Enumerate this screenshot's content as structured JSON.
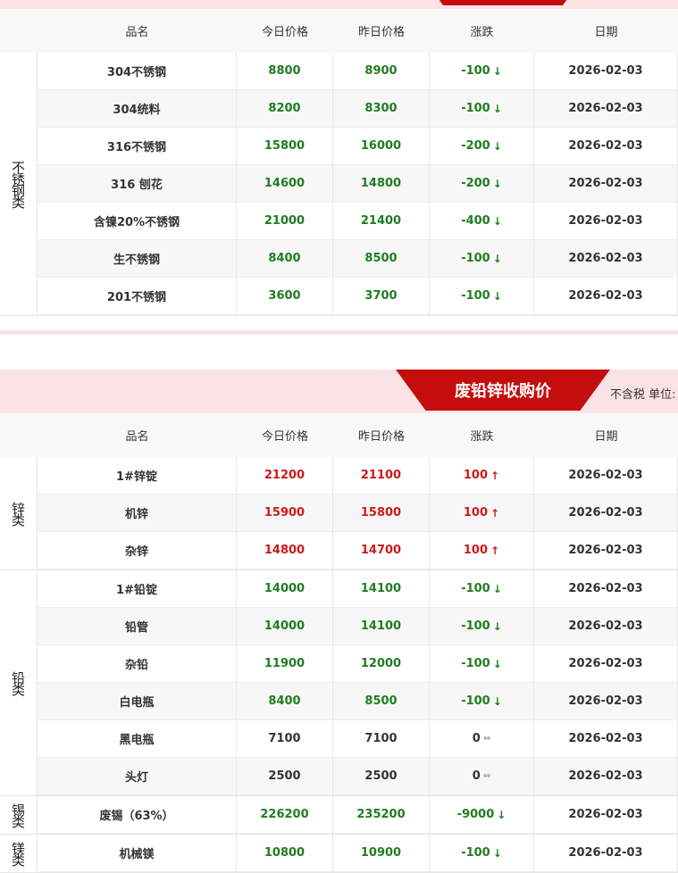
{
  "colors": {
    "up": "#cc1a1a",
    "down": "#1f7d1f",
    "banner": "#c40d0d"
  },
  "headers": [
    "品名",
    "今日价格",
    "昨日价格",
    "涨跌",
    "日期"
  ],
  "section2": {
    "title": "废铅锌收购价",
    "unit": "不含税 单位:"
  },
  "table1": [
    {
      "category": "不锈钢类",
      "rows": [
        {
          "name": "304不锈钢",
          "today": "8800",
          "yesterday": "8900",
          "change": "-100",
          "trend": "down",
          "date": "2026-02-03"
        },
        {
          "name": "304统料",
          "today": "8200",
          "yesterday": "8300",
          "change": "-100",
          "trend": "down",
          "date": "2026-02-03"
        },
        {
          "name": "316不锈钢",
          "today": "15800",
          "yesterday": "16000",
          "change": "-200",
          "trend": "down",
          "date": "2026-02-03"
        },
        {
          "name": "316 刨花",
          "today": "14600",
          "yesterday": "14800",
          "change": "-200",
          "trend": "down",
          "date": "2026-02-03"
        },
        {
          "name": "含镍20%不锈钢",
          "today": "21000",
          "yesterday": "21400",
          "change": "-400",
          "trend": "down",
          "date": "2026-02-03"
        },
        {
          "name": "生不锈钢",
          "today": "8400",
          "yesterday": "8500",
          "change": "-100",
          "trend": "down",
          "date": "2026-02-03"
        },
        {
          "name": "201不锈钢",
          "today": "3600",
          "yesterday": "3700",
          "change": "-100",
          "trend": "down",
          "date": "2026-02-03"
        }
      ]
    }
  ],
  "table2": [
    {
      "category": "锌类",
      "rows": [
        {
          "name": "1#锌锭",
          "today": "21200",
          "yesterday": "21100",
          "change": "100",
          "trend": "up",
          "date": "2026-02-03"
        },
        {
          "name": "机锌",
          "today": "15900",
          "yesterday": "15800",
          "change": "100",
          "trend": "up",
          "date": "2026-02-03"
        },
        {
          "name": "杂锌",
          "today": "14800",
          "yesterday": "14700",
          "change": "100",
          "trend": "up",
          "date": "2026-02-03"
        }
      ]
    },
    {
      "category": "铅类",
      "rows": [
        {
          "name": "1#铅锭",
          "today": "14000",
          "yesterday": "14100",
          "change": "-100",
          "trend": "down",
          "date": "2026-02-03"
        },
        {
          "name": "铅管",
          "today": "14000",
          "yesterday": "14100",
          "change": "-100",
          "trend": "down",
          "date": "2026-02-03"
        },
        {
          "name": "杂铅",
          "today": "11900",
          "yesterday": "12000",
          "change": "-100",
          "trend": "down",
          "date": "2026-02-03"
        },
        {
          "name": "白电瓶",
          "today": "8400",
          "yesterday": "8500",
          "change": "-100",
          "trend": "down",
          "date": "2026-02-03"
        },
        {
          "name": "黑电瓶",
          "today": "7100",
          "yesterday": "7100",
          "change": "0",
          "trend": "flat",
          "date": "2026-02-03"
        },
        {
          "name": "头灯",
          "today": "2500",
          "yesterday": "2500",
          "change": "0",
          "trend": "flat",
          "date": "2026-02-03"
        }
      ]
    },
    {
      "category": "锡类",
      "rows": [
        {
          "name": "废锡（63%）",
          "today": "226200",
          "yesterday": "235200",
          "change": "-9000",
          "trend": "down",
          "date": "2026-02-03"
        }
      ]
    },
    {
      "category": "镁类",
      "rows": [
        {
          "name": "机械镁",
          "today": "10800",
          "yesterday": "10900",
          "change": "-100",
          "trend": "down",
          "date": "2026-02-03"
        }
      ]
    }
  ]
}
